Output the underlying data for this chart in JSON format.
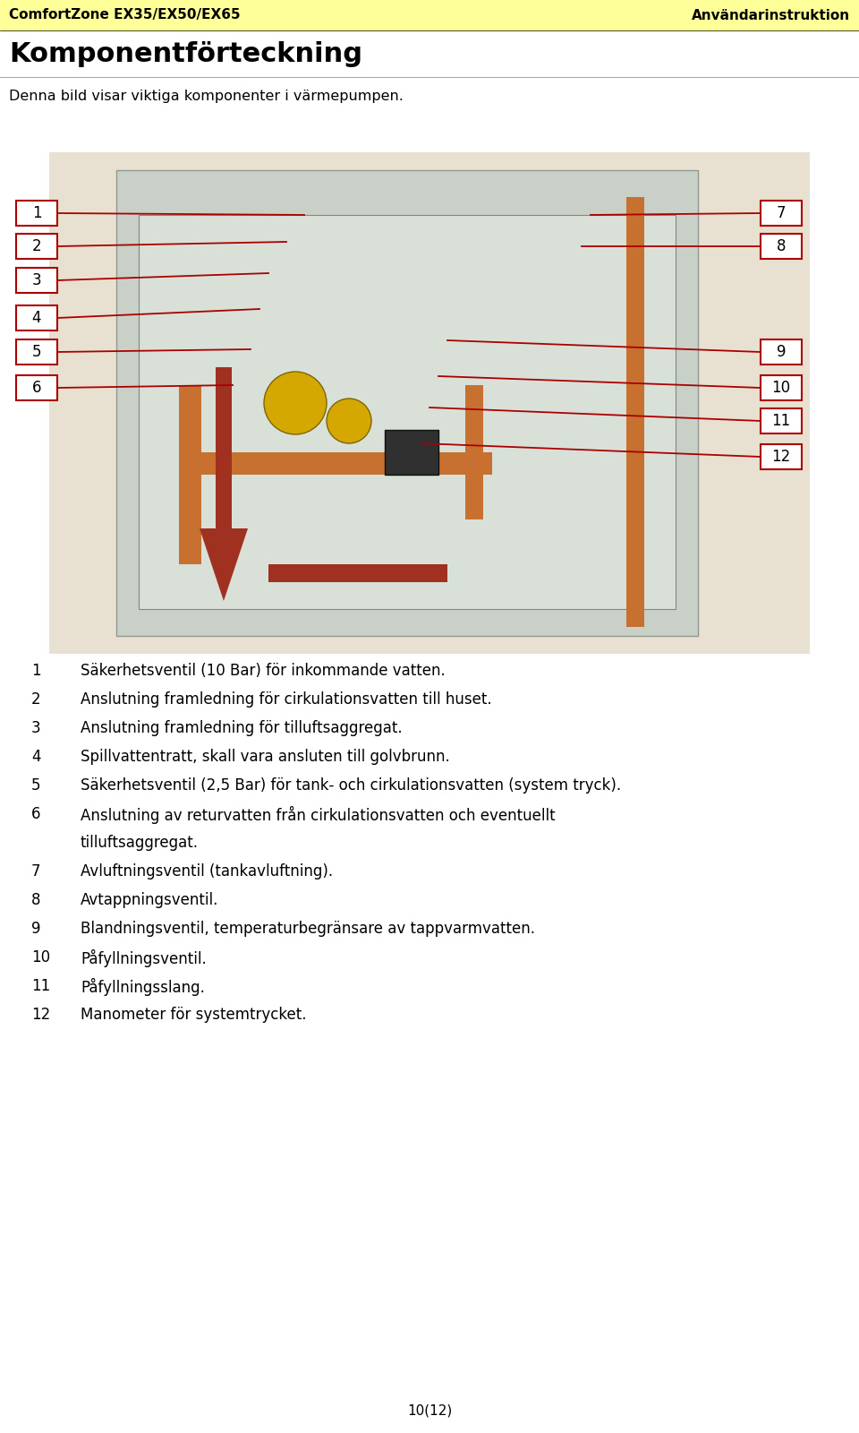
{
  "header_left": "ComfortZone EX35/EX50/EX65",
  "header_right": "Användarinstruktion",
  "header_bg": "#FFFF99",
  "title": "Komponentförteckning",
  "subtitle": "Denna bild visar viktiga komponenter i värmepumpen.",
  "bg_color": "#FFFFFF",
  "footer_text": "10(12)",
  "list_items": [
    {
      "num": "1",
      "text": "Säkerhetsventil (10 Bar) för inkommande vatten.",
      "extra": ""
    },
    {
      "num": "2",
      "text": "Anslutning framledning för cirkulationsvatten till huset.",
      "extra": ""
    },
    {
      "num": "3",
      "text": "Anslutning framledning för tilluftsaggregat.",
      "extra": ""
    },
    {
      "num": "4",
      "text": "Spillvattentratt, skall vara ansluten till golvbrunn.",
      "extra": ""
    },
    {
      "num": "5",
      "text": "Säkerhetsventil (2,5 Bar) för tank- och cirkulationsvatten (system tryck).",
      "extra": ""
    },
    {
      "num": "6",
      "text": "Anslutning av returvatten från cirkulationsvatten och eventuellt",
      "extra": "tilluftsaggregat."
    },
    {
      "num": "7",
      "text": "Avluftningsventil (tankavluftning).",
      "extra": ""
    },
    {
      "num": "8",
      "text": "Avtappningsventil.",
      "extra": ""
    },
    {
      "num": "9",
      "text": "Blandningsventil, temperaturbegränsare av tappvarmvatten.",
      "extra": ""
    },
    {
      "num": "10",
      "text": "Påfyllningsventil.",
      "extra": ""
    },
    {
      "num": "11",
      "text": "Påfyllningsslang.",
      "extra": ""
    },
    {
      "num": "12",
      "text": "Manometer för systemtrycket.",
      "extra": ""
    }
  ],
  "header_fontsize": 11,
  "title_fontsize": 22,
  "subtitle_fontsize": 11.5,
  "list_fontsize": 12,
  "red_color": "#AA0000",
  "box_edge_color": "#AA0000",
  "label_boxes_left": [
    "1",
    "2",
    "3",
    "4",
    "5",
    "6"
  ],
  "label_boxes_right": [
    "7",
    "8",
    "9",
    "10",
    "11",
    "12"
  ]
}
